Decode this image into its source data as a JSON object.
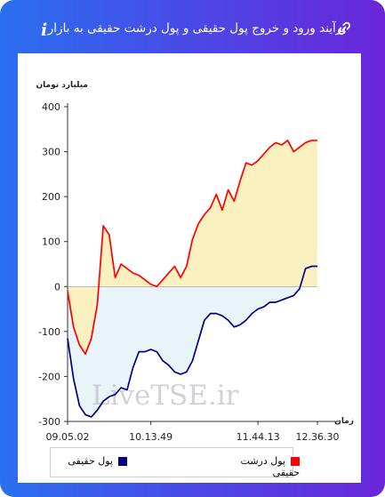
{
  "header": {
    "title": "برآیند ورود و خروج پول حقیقی و پول درشت حقیقی به بازار",
    "link_icon": "link-icon",
    "info_icon": "info-icon",
    "info_glyph": "i"
  },
  "watermark": "LiveTSE.ir",
  "colors": {
    "frame_left": "#2a6ff0",
    "frame_right": "#6a26d8",
    "series_real": "#000080",
    "series_big_real": "#ff0000",
    "fill_positive": "#faf0c0",
    "fill_negative": "#e8f4f8"
  },
  "chart_data": {
    "type": "line",
    "title": "",
    "xlabel": "زمان",
    "ylabel": "میلیارد تومان",
    "ylim": [
      -300,
      400
    ],
    "yticks": [
      400,
      300,
      200,
      100,
      0,
      -100,
      -200,
      -300
    ],
    "xticks": [
      "09.05.02",
      "10.13.49",
      "11.44.13",
      "12.36.30"
    ],
    "grid": false,
    "legend_position": "bottom",
    "x": [
      "09.05.02",
      "09.10",
      "09.15",
      "09.20",
      "09.25",
      "09.30",
      "09.35",
      "09.40",
      "09.45",
      "09.50",
      "09.55",
      "10.00",
      "10.05",
      "10.10",
      "10.13.49",
      "10.20",
      "10.25",
      "10.30",
      "10.35",
      "10.40",
      "10.45",
      "10.50",
      "10.55",
      "11.00",
      "11.05",
      "11.10",
      "11.15",
      "11.20",
      "11.25",
      "11.30",
      "11.35",
      "11.40",
      "11.44.13",
      "11.50",
      "11.55",
      "12.00",
      "12.05",
      "12.10",
      "12.15",
      "12.20",
      "12.25",
      "12.30",
      "12.36.30"
    ],
    "series": [
      {
        "name": "پول حقیقی",
        "color": "#000080",
        "values": [
          -115,
          -205,
          -265,
          -285,
          -290,
          -275,
          -255,
          -245,
          -240,
          -225,
          -230,
          -180,
          -145,
          -145,
          -140,
          -145,
          -165,
          -175,
          -190,
          -195,
          -190,
          -165,
          -120,
          -75,
          -60,
          -60,
          -65,
          -75,
          -90,
          -85,
          -75,
          -60,
          -50,
          -45,
          -35,
          -35,
          -30,
          -25,
          -20,
          -5,
          40,
          45,
          45
        ]
      },
      {
        "name": "پول درشت حقیقی",
        "color": "#ff0000",
        "values": [
          -10,
          -90,
          -130,
          -150,
          -115,
          -40,
          135,
          115,
          20,
          50,
          40,
          30,
          25,
          15,
          5,
          0,
          15,
          30,
          45,
          20,
          45,
          105,
          140,
          160,
          175,
          205,
          170,
          215,
          190,
          235,
          275,
          270,
          280,
          295,
          310,
          320,
          315,
          325,
          300,
          310,
          320,
          325,
          325
        ]
      }
    ]
  },
  "legend": [
    {
      "label": "پول حقیقی",
      "color": "#000080"
    },
    {
      "label": "پول درشت حقیقی",
      "color": "#ff0000"
    }
  ]
}
